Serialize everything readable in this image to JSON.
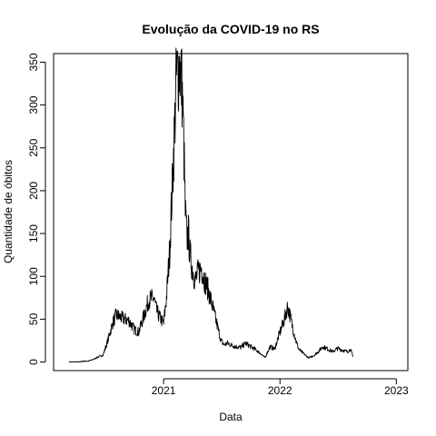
{
  "chart_data": {
    "type": "line",
    "title": "Evolução da COVID-19 no RS",
    "xlabel": "Data",
    "ylabel": "Quantidade de óbitos",
    "x_ticks": [
      "2021",
      "2022",
      "2023"
    ],
    "y_ticks": [
      "0",
      "50",
      "100",
      "150",
      "200",
      "250",
      "300",
      "350"
    ],
    "xlim": [
      "2020-01-22",
      "2023-02-06"
    ],
    "ylim": [
      -10,
      360
    ],
    "grid": false,
    "series": [
      {
        "color": "#000000",
        "x": [
          "2020-03-10",
          "2020-03-25",
          "2020-04-10",
          "2020-04-25",
          "2020-05-10",
          "2020-05-25",
          "2020-06-10",
          "2020-06-25",
          "2020-07-10",
          "2020-07-25",
          "2020-08-05",
          "2020-08-20",
          "2020-09-01",
          "2020-09-15",
          "2020-10-01",
          "2020-10-15",
          "2020-11-01",
          "2020-11-15",
          "2020-12-01",
          "2020-12-10",
          "2020-12-20",
          "2021-01-01",
          "2021-01-10",
          "2021-01-20",
          "2021-01-31",
          "2021-02-10",
          "2021-02-20",
          "2021-02-28",
          "2021-03-05",
          "2021-03-10",
          "2021-03-15",
          "2021-03-20",
          "2021-03-25",
          "2021-04-01",
          "2021-04-10",
          "2021-04-20",
          "2021-04-30",
          "2021-05-10",
          "2021-05-20",
          "2021-05-31",
          "2021-06-10",
          "2021-06-20",
          "2021-06-30",
          "2021-07-10",
          "2021-07-20",
          "2021-07-31",
          "2021-08-15",
          "2021-09-01",
          "2021-09-15",
          "2021-10-01",
          "2021-10-15",
          "2021-11-01",
          "2021-11-15",
          "2021-12-01",
          "2021-12-15",
          "2022-01-01",
          "2022-01-15",
          "2022-01-25",
          "2022-02-01",
          "2022-02-10",
          "2022-02-20",
          "2022-03-01",
          "2022-03-15",
          "2022-04-01",
          "2022-04-15",
          "2022-05-01",
          "2022-05-15",
          "2022-06-01",
          "2022-06-15",
          "2022-07-01",
          "2022-07-15",
          "2022-08-01",
          "2022-08-10",
          "2022-08-18"
        ],
        "values": [
          0,
          0,
          0,
          1,
          1,
          3,
          6,
          8,
          25,
          45,
          55,
          52,
          50,
          48,
          38,
          35,
          55,
          72,
          75,
          60,
          52,
          45,
          75,
          130,
          230,
          330,
          348,
          320,
          260,
          175,
          145,
          150,
          125,
          110,
          95,
          105,
          110,
          95,
          85,
          70,
          55,
          40,
          25,
          20,
          22,
          20,
          18,
          17,
          22,
          18,
          15,
          10,
          5,
          18,
          15,
          35,
          50,
          65,
          55,
          40,
          25,
          15,
          10,
          5,
          7,
          12,
          18,
          15,
          12,
          16,
          14,
          12,
          15,
          6
        ]
      }
    ]
  }
}
